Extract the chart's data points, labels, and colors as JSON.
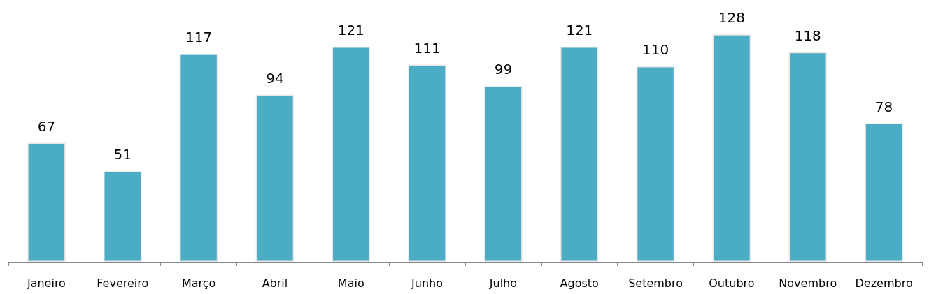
{
  "chart_data": {
    "type": "bar",
    "categories": [
      "Janeiro",
      "Fevereiro",
      "Março",
      "Abril",
      "Maio",
      "Junho",
      "Julho",
      "Agosto",
      "Setembro",
      "Outubro",
      "Novembro",
      "Dezembro"
    ],
    "values": [
      67,
      51,
      117,
      94,
      121,
      111,
      99,
      121,
      110,
      128,
      118,
      78
    ],
    "color": "#4bacc6",
    "data_labels": true
  }
}
